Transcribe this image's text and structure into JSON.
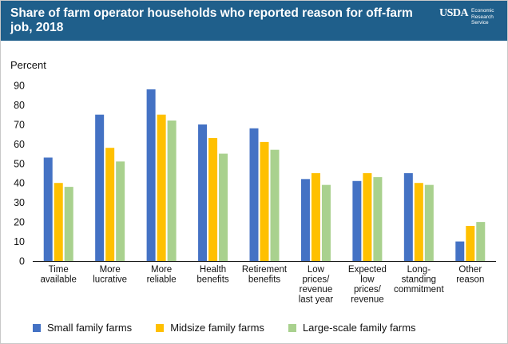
{
  "header": {
    "title": "Share of farm operator households who reported reason for off-farm job, 2018",
    "logo_text": "USDA",
    "logo_subtext": [
      "Economic",
      "Research",
      "Service"
    ],
    "background_color": "#1f5f8b"
  },
  "chart_data": {
    "type": "bar",
    "ylabel": "Percent",
    "xlabel": "",
    "ylim": [
      0,
      90
    ],
    "yticks": [
      0,
      10,
      20,
      30,
      40,
      50,
      60,
      70,
      80,
      90
    ],
    "grid": false,
    "legend_position": "bottom",
    "categories": [
      "Time available",
      "More lucrative",
      "More reliable",
      "Health benefits",
      "Retirement benefits",
      "Low prices/ revenue last year",
      "Expected low prices/ revenue",
      "Long-standing commitment",
      "Other reason"
    ],
    "category_label_lines": [
      [
        "Time",
        "available"
      ],
      [
        "More",
        "lucrative"
      ],
      [
        "More",
        "reliable"
      ],
      [
        "Health",
        "benefits"
      ],
      [
        "Retirement",
        "benefits"
      ],
      [
        "Low",
        "prices/",
        "revenue",
        "last year"
      ],
      [
        "Expected",
        "low",
        "prices/",
        "revenue"
      ],
      [
        "Long-",
        "standing",
        "commitment"
      ],
      [
        "Other",
        "reason"
      ]
    ],
    "series": [
      {
        "name": "Small family farms",
        "color": "#4472c4",
        "values": [
          53,
          75,
          88,
          70,
          68,
          42,
          41,
          45,
          10
        ]
      },
      {
        "name": "Midsize family farms",
        "color": "#ffc000",
        "values": [
          40,
          58,
          75,
          63,
          61,
          45,
          45,
          40,
          18
        ]
      },
      {
        "name": "Large-scale family farms",
        "color": "#a9d18e",
        "values": [
          38,
          51,
          72,
          55,
          57,
          39,
          43,
          39,
          20
        ]
      }
    ]
  }
}
